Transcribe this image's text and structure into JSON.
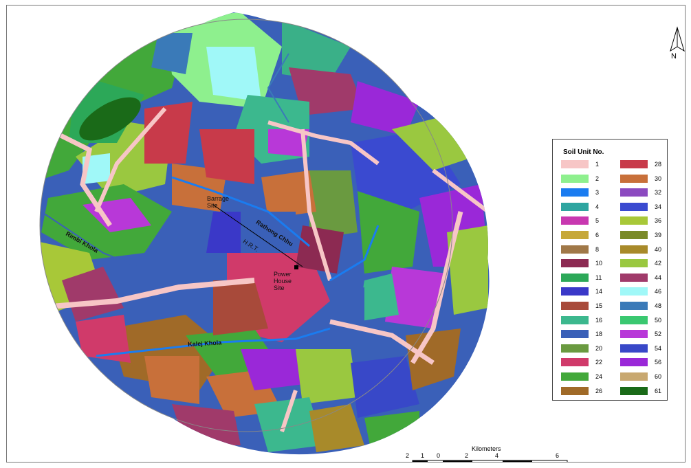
{
  "north_arrow": {
    "label": "N"
  },
  "legend": {
    "title": "Soil Unit No.",
    "items": [
      {
        "label": "1",
        "color": "#f7c6c6"
      },
      {
        "label": "2",
        "color": "#8ef08e"
      },
      {
        "label": "3",
        "color": "#1a7cf0"
      },
      {
        "label": "4",
        "color": "#2ea5a0"
      },
      {
        "label": "5",
        "color": "#c838b0"
      },
      {
        "label": "6",
        "color": "#c6a83a"
      },
      {
        "label": "8",
        "color": "#a07848"
      },
      {
        "label": "10",
        "color": "#8c2a52"
      },
      {
        "label": "11",
        "color": "#2ca858"
      },
      {
        "label": "14",
        "color": "#3a38c8"
      },
      {
        "label": "15",
        "color": "#a84a3a"
      },
      {
        "label": "16",
        "color": "#3cb88e"
      },
      {
        "label": "18",
        "color": "#3a60b8"
      },
      {
        "label": "20",
        "color": "#6a9a40"
      },
      {
        "label": "22",
        "color": "#d03a6a"
      },
      {
        "label": "24",
        "color": "#42a83a"
      },
      {
        "label": "26",
        "color": "#a06a28"
      },
      {
        "label": "28",
        "color": "#c83a4a"
      },
      {
        "label": "30",
        "color": "#c8703a"
      },
      {
        "label": "32",
        "color": "#8c4ac0"
      },
      {
        "label": "34",
        "color": "#3a4ad0"
      },
      {
        "label": "36",
        "color": "#a8c838"
      },
      {
        "label": "39",
        "color": "#7a8a28"
      },
      {
        "label": "40",
        "color": "#a88a2a"
      },
      {
        "label": "42",
        "color": "#9ac840"
      },
      {
        "label": "44",
        "color": "#a03a6a"
      },
      {
        "label": "46",
        "color": "#a0f8f8"
      },
      {
        "label": "48",
        "color": "#3a7ab8"
      },
      {
        "label": "50",
        "color": "#3ac870"
      },
      {
        "label": "52",
        "color": "#b838d8"
      },
      {
        "label": "54",
        "color": "#3848c8"
      },
      {
        "label": "56",
        "color": "#9a28d8"
      },
      {
        "label": "60",
        "color": "#c8a870"
      },
      {
        "label": "61",
        "color": "#1a6a18"
      }
    ]
  },
  "map_labels": {
    "barrage": "Barrage\nSite",
    "rathong": "Rathong Chhu",
    "hrt": "H.R.T.",
    "rimbi": "Rimbi Khola",
    "powerhouse": "Power\nHouse\nSite",
    "kalej": "Kalej Khola"
  },
  "scale": {
    "title": "Kilometers",
    "ticks": [
      "2",
      "1",
      "0",
      "2",
      "4",
      "6"
    ]
  }
}
